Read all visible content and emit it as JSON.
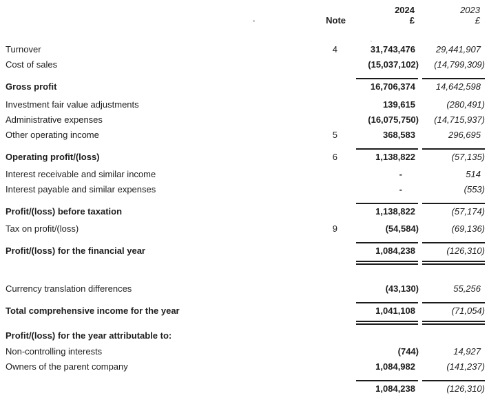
{
  "document": {
    "columns": {
      "note_label": "Note",
      "year_current": "2024",
      "year_prior": "2023",
      "currency_current": "£",
      "currency_prior": "£"
    },
    "rows": [
      {
        "label": "Turnover",
        "note": "4",
        "v2024": "31,743,476",
        "v2023": "29,441,907",
        "bold": false,
        "rule_above": false,
        "double_rule_below": false,
        "gap": 0
      },
      {
        "label": "Cost of sales",
        "note": "",
        "v2024": "(15,037,102)",
        "v2023": "(14,799,309)",
        "bold": false,
        "rule_above": false,
        "double_rule_below": false,
        "gap": 0
      },
      {
        "label": "Gross profit",
        "note": "",
        "v2024": "16,706,374",
        "v2023": "14,642,598",
        "bold": true,
        "rule_above": true,
        "double_rule_below": false,
        "gap": 0
      },
      {
        "label": "Investment fair value adjustments",
        "note": "",
        "v2024": "139,615",
        "v2023": "(280,491)",
        "bold": false,
        "rule_above": false,
        "double_rule_below": false,
        "gap": 4
      },
      {
        "label": "Administrative expenses",
        "note": "",
        "v2024": "(16,075,750)",
        "v2023": "(14,715,937)",
        "bold": false,
        "rule_above": false,
        "double_rule_below": false,
        "gap": 0
      },
      {
        "label": "Other operating income",
        "note": "5",
        "v2024": "368,583",
        "v2023": "296,695",
        "bold": false,
        "rule_above": false,
        "double_rule_below": false,
        "gap": 0
      },
      {
        "label": "Operating profit/(loss)",
        "note": "6",
        "v2024": "1,138,822",
        "v2023": "(57,135)",
        "bold": true,
        "rule_above": true,
        "double_rule_below": false,
        "gap": 0
      },
      {
        "label": "Interest receivable and similar income",
        "note": "",
        "v2024": "-",
        "v2023": "514",
        "bold": false,
        "rule_above": false,
        "double_rule_below": false,
        "gap": 3
      },
      {
        "label": "Interest payable and similar expenses",
        "note": "",
        "v2024": "-",
        "v2023": "(553)",
        "bold": false,
        "rule_above": false,
        "double_rule_below": false,
        "gap": 0
      },
      {
        "label": "Profit/(loss) before taxation",
        "note": "",
        "v2024": "1,138,822",
        "v2023": "(57,174)",
        "bold": true,
        "rule_above": true,
        "double_rule_below": false,
        "gap": 0
      },
      {
        "label": "Tax on profit/(loss)",
        "note": "9",
        "v2024": "(54,584)",
        "v2023": "(69,136)",
        "bold": false,
        "rule_above": false,
        "double_rule_below": false,
        "gap": 3
      },
      {
        "label": "Profit/(loss) for the financial year",
        "note": "",
        "v2024": "1,084,238",
        "v2023": "(126,310)",
        "bold": true,
        "rule_above": true,
        "double_rule_below": true,
        "gap": 0
      },
      {
        "label": "Currency translation differences",
        "note": "",
        "v2024": "(43,130)",
        "v2023": "55,256",
        "bold": false,
        "rule_above": false,
        "double_rule_below": false,
        "gap": 24
      },
      {
        "label": "Total comprehensive income for the year",
        "note": "",
        "v2024": "1,041,108",
        "v2023": "(71,054)",
        "bold": true,
        "rule_above": true,
        "double_rule_below": true,
        "gap": 0
      },
      {
        "label": "Profit/(loss) for the year attributable to:",
        "note": "",
        "v2024": "",
        "v2023": "",
        "bold": true,
        "rule_above": false,
        "double_rule_below": false,
        "gap": 5
      },
      {
        "label": "Non-controlling interests",
        "note": "",
        "v2024": "(744)",
        "v2023": "14,927",
        "bold": false,
        "rule_above": false,
        "double_rule_below": false,
        "gap": 1
      },
      {
        "label": "Owners of the parent company",
        "note": "",
        "v2024": "1,084,982",
        "v2023": "(141,237)",
        "bold": false,
        "rule_above": false,
        "double_rule_below": false,
        "gap": 0
      },
      {
        "label": "",
        "note": "",
        "v2024": "1,084,238",
        "v2023": "(126,310)",
        "bold": false,
        "rule_above": true,
        "double_rule_below": false,
        "gap": 0
      }
    ]
  }
}
